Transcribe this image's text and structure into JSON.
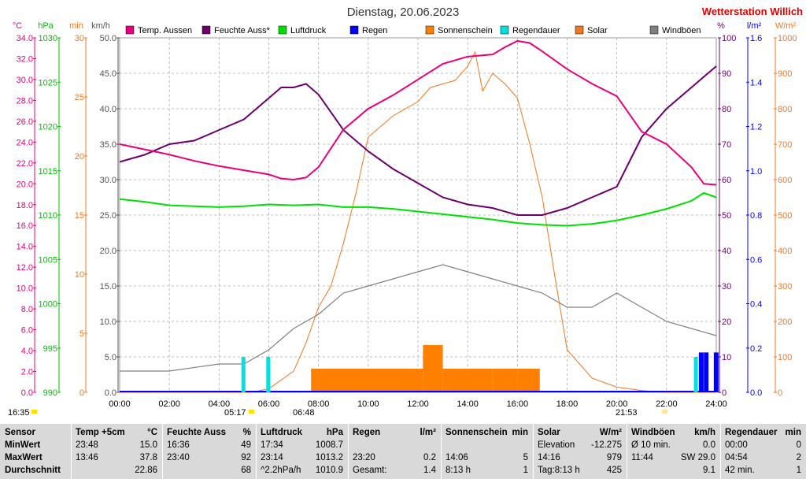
{
  "title": "Dienstag, 20.06.2023",
  "station": "Wetterstation Willich",
  "colors": {
    "temp": "#e6007e",
    "humidity": "#6b006b",
    "pressure": "#00e000",
    "rain": "#0000ff",
    "sunshine": "#ff8000",
    "raindur": "#00e0e0",
    "solar": "#f07820",
    "wind": "#808080"
  },
  "legend": [
    {
      "label": "Temp. Aussen",
      "color": "#e6007e"
    },
    {
      "label": "Feuchte Auss*",
      "color": "#6b006b"
    },
    {
      "label": "Luftdruck",
      "color": "#00e000"
    },
    {
      "label": "Regen",
      "color": "#0000ff"
    },
    {
      "label": "Sonnenschein",
      "color": "#ff8000"
    },
    {
      "label": "Regendauer",
      "color": "#00e0e0"
    },
    {
      "label": "Solar",
      "color": "#f07820"
    },
    {
      "label": "Windböen",
      "color": "#808080"
    }
  ],
  "axis_units": {
    "temp": "°C",
    "pressure": "hPa",
    "minutes": "min",
    "wind": "km/h",
    "humidity": "%",
    "rain": "l/m²",
    "solar": "W/m²"
  },
  "sun_events": {
    "sunrise": "05:17",
    "sunset": "21:53",
    "dawn": "16:35",
    "noon_mark": "06:48"
  },
  "chart_data": {
    "type": "line",
    "title": "Dienstag, 20.06.2023",
    "x_ticks": [
      "00:00",
      "02:00",
      "04:00",
      "06:00",
      "08:00",
      "10:00",
      "12:00",
      "14:00",
      "16:00",
      "18:00",
      "20:00",
      "22:00",
      "24:00"
    ],
    "axes": {
      "temp": {
        "range": [
          0,
          34
        ],
        "ticks": [
          "0.0",
          "2.0",
          "4.0",
          "6.0",
          "8.0",
          "10.0",
          "12.0",
          "14.0",
          "16.0",
          "18.0",
          "20.0",
          "22.0",
          "24.0",
          "26.0",
          "28.0",
          "30.0",
          "32.0",
          "34.0"
        ]
      },
      "pressure": {
        "range": [
          990,
          1030
        ],
        "ticks": [
          "990",
          "995",
          "1000",
          "1005",
          "1010",
          "1015",
          "1020",
          "1025",
          "1030"
        ]
      },
      "minutes": {
        "range": [
          0,
          30
        ],
        "ticks": [
          "0",
          "5",
          "10",
          "15",
          "20",
          "25",
          "30"
        ]
      },
      "wind": {
        "range": [
          0,
          50
        ],
        "ticks": [
          "0.0",
          "5.0",
          "10.0",
          "15.0",
          "20.0",
          "25.0",
          "30.0",
          "35.0",
          "40.0",
          "45.0",
          "50.0"
        ]
      },
      "humidity": {
        "range": [
          0,
          100
        ],
        "ticks": [
          "0",
          "10",
          "20",
          "30",
          "40",
          "50",
          "60",
          "70",
          "80",
          "90",
          "100"
        ]
      },
      "rain": {
        "range": [
          0,
          1.6
        ],
        "ticks": [
          "0.0",
          "0.2",
          "0.4",
          "0.6",
          "0.8",
          "1.0",
          "1.2",
          "1.4",
          "1.6"
        ]
      },
      "solar": {
        "range": [
          0,
          1000
        ],
        "ticks": [
          "0",
          "100",
          "200",
          "300",
          "400",
          "500",
          "600",
          "700",
          "800",
          "900",
          "1000"
        ]
      }
    },
    "series": [
      {
        "name": "Temp. Aussen",
        "axis": "temp",
        "x": [
          0,
          1,
          2,
          3,
          4,
          5,
          6,
          6.5,
          7,
          7.5,
          8,
          9,
          10,
          11,
          12,
          13,
          14,
          15,
          15.5,
          16,
          16.5,
          17,
          18,
          19,
          20,
          21,
          22,
          23,
          23.5,
          24
        ],
        "y": [
          23.8,
          23.3,
          22.8,
          22.2,
          21.7,
          21.3,
          20.9,
          20.5,
          20.4,
          20.6,
          21.6,
          25.2,
          27.2,
          28.5,
          30.0,
          31.5,
          32.2,
          32.4,
          33.1,
          33.7,
          33.5,
          32.7,
          31.0,
          29.6,
          28.4,
          25.0,
          23.8,
          21.6,
          20.0,
          19.9
        ]
      },
      {
        "name": "Feuchte Auss*",
        "axis": "humidity",
        "x": [
          0,
          1,
          2,
          3,
          4,
          5,
          6,
          6.5,
          7,
          7.5,
          8,
          9,
          10,
          11,
          12,
          13,
          14,
          15,
          16,
          17,
          18,
          19,
          20,
          21,
          22,
          23,
          24
        ],
        "y": [
          65,
          67,
          70,
          71,
          74,
          77,
          83,
          86,
          86,
          87,
          84,
          74,
          68,
          63,
          59,
          55,
          53,
          52,
          50,
          50,
          52,
          55,
          58,
          72,
          80,
          86,
          92
        ]
      },
      {
        "name": "Luftdruck",
        "axis": "pressure",
        "x": [
          0,
          1,
          2,
          3,
          4,
          5,
          6,
          7,
          8,
          9,
          10,
          11,
          12,
          13,
          14,
          15,
          16,
          17,
          18,
          19,
          20,
          21,
          22,
          23,
          23.5,
          24
        ],
        "y": [
          1011.8,
          1011.5,
          1011.1,
          1011.0,
          1010.9,
          1011.0,
          1011.2,
          1011.1,
          1011.2,
          1010.9,
          1010.9,
          1010.7,
          1010.4,
          1010.1,
          1009.8,
          1009.5,
          1009.1,
          1008.9,
          1008.8,
          1009.0,
          1009.4,
          1010.0,
          1010.7,
          1011.6,
          1012.5,
          1012.0
        ]
      },
      {
        "name": "Solar",
        "axis": "solar",
        "x": [
          0,
          5.3,
          6,
          7,
          7.5,
          8,
          8.5,
          9,
          9.5,
          10,
          11,
          12,
          12.5,
          13,
          13.5,
          14,
          14.3,
          14.6,
          15,
          15.5,
          16,
          16.5,
          17,
          17.5,
          18,
          19,
          20,
          21,
          21.9,
          24
        ],
        "y": [
          0,
          0,
          10,
          60,
          140,
          240,
          300,
          420,
          560,
          720,
          780,
          820,
          860,
          870,
          880,
          920,
          960,
          850,
          900,
          870,
          830,
          700,
          550,
          330,
          120,
          40,
          15,
          5,
          0,
          0
        ]
      },
      {
        "name": "Sonnenschein",
        "axis": "minutes",
        "x": [
          7.7,
          8,
          12,
          12.2,
          13,
          15,
          16,
          16.9
        ],
        "y": [
          2,
          2,
          2,
          4,
          2,
          2,
          2,
          2
        ]
      },
      {
        "name": "Windböen",
        "axis": "wind",
        "x": [
          0,
          2,
          4,
          5,
          6,
          7,
          8,
          9,
          10,
          11,
          12,
          13,
          14,
          15,
          16,
          17,
          18,
          19,
          20,
          21,
          22,
          23,
          24
        ],
        "y": [
          3,
          3,
          4,
          4,
          6,
          9,
          11,
          14,
          15,
          16,
          17,
          18,
          17,
          16,
          15,
          14,
          12,
          12,
          14,
          12,
          10,
          9,
          8
        ]
      }
    ]
  },
  "table": {
    "row_labels": {
      "sensor": "Sensor",
      "min": "MinWert",
      "max": "MaxWert",
      "avg": "Durchschnitt"
    },
    "groups": [
      {
        "key": "temp",
        "title": "Temp +5cm",
        "unit": "°C",
        "min_t": "23:48",
        "min_v": "15.0",
        "max_t": "13:46",
        "max_v": "37.8",
        "avg_t": "",
        "avg_v": "22.86"
      },
      {
        "key": "hum",
        "title": "Feuchte Auss",
        "unit": "%",
        "min_t": "16:36",
        "min_v": "49",
        "max_t": "23:40",
        "max_v": "92",
        "avg_t": "",
        "avg_v": "68"
      },
      {
        "key": "press",
        "title": "Luftdruck",
        "unit": "hPa",
        "min_t": "17:34",
        "min_v": "1008.7",
        "max_t": "23:14",
        "max_v": "1013.2",
        "avg_t": "^2.2hPa/h",
        "avg_v": "1010.9"
      },
      {
        "key": "rain",
        "title": "Regen",
        "unit": "l/m²",
        "min_t": "",
        "min_v": "",
        "max_t": "23:20",
        "max_v": "0.2",
        "avg_t": "Gesamt:",
        "avg_v": "1.4"
      },
      {
        "key": "sun",
        "title": "Sonnenschein",
        "unit": "min",
        "min_t": "",
        "min_v": "",
        "max_t": "14:06",
        "max_v": "5",
        "avg_t": "8:13 h",
        "avg_v": "1"
      },
      {
        "key": "solar",
        "title": "Solar",
        "unit": "W/m²",
        "min_t": "Elevation",
        "min_v": "-12.275",
        "max_t": "14:16",
        "max_v": "979",
        "avg_t": "Tag:8:13 h",
        "avg_v": "425"
      },
      {
        "key": "wind",
        "title": "Windböen",
        "unit": "km/h",
        "min_t": "Ø 10 min.",
        "min_v": "0.0",
        "max_t": "11:44",
        "max_v": "SW 29.0",
        "avg_t": "",
        "avg_v": "9.1"
      },
      {
        "key": "rdur",
        "title": "Regendauer",
        "unit": "min",
        "min_t": "00:00",
        "min_v": "0",
        "max_t": "04:54",
        "max_v": "2",
        "avg_t": "42 min.",
        "avg_v": "1"
      }
    ]
  }
}
